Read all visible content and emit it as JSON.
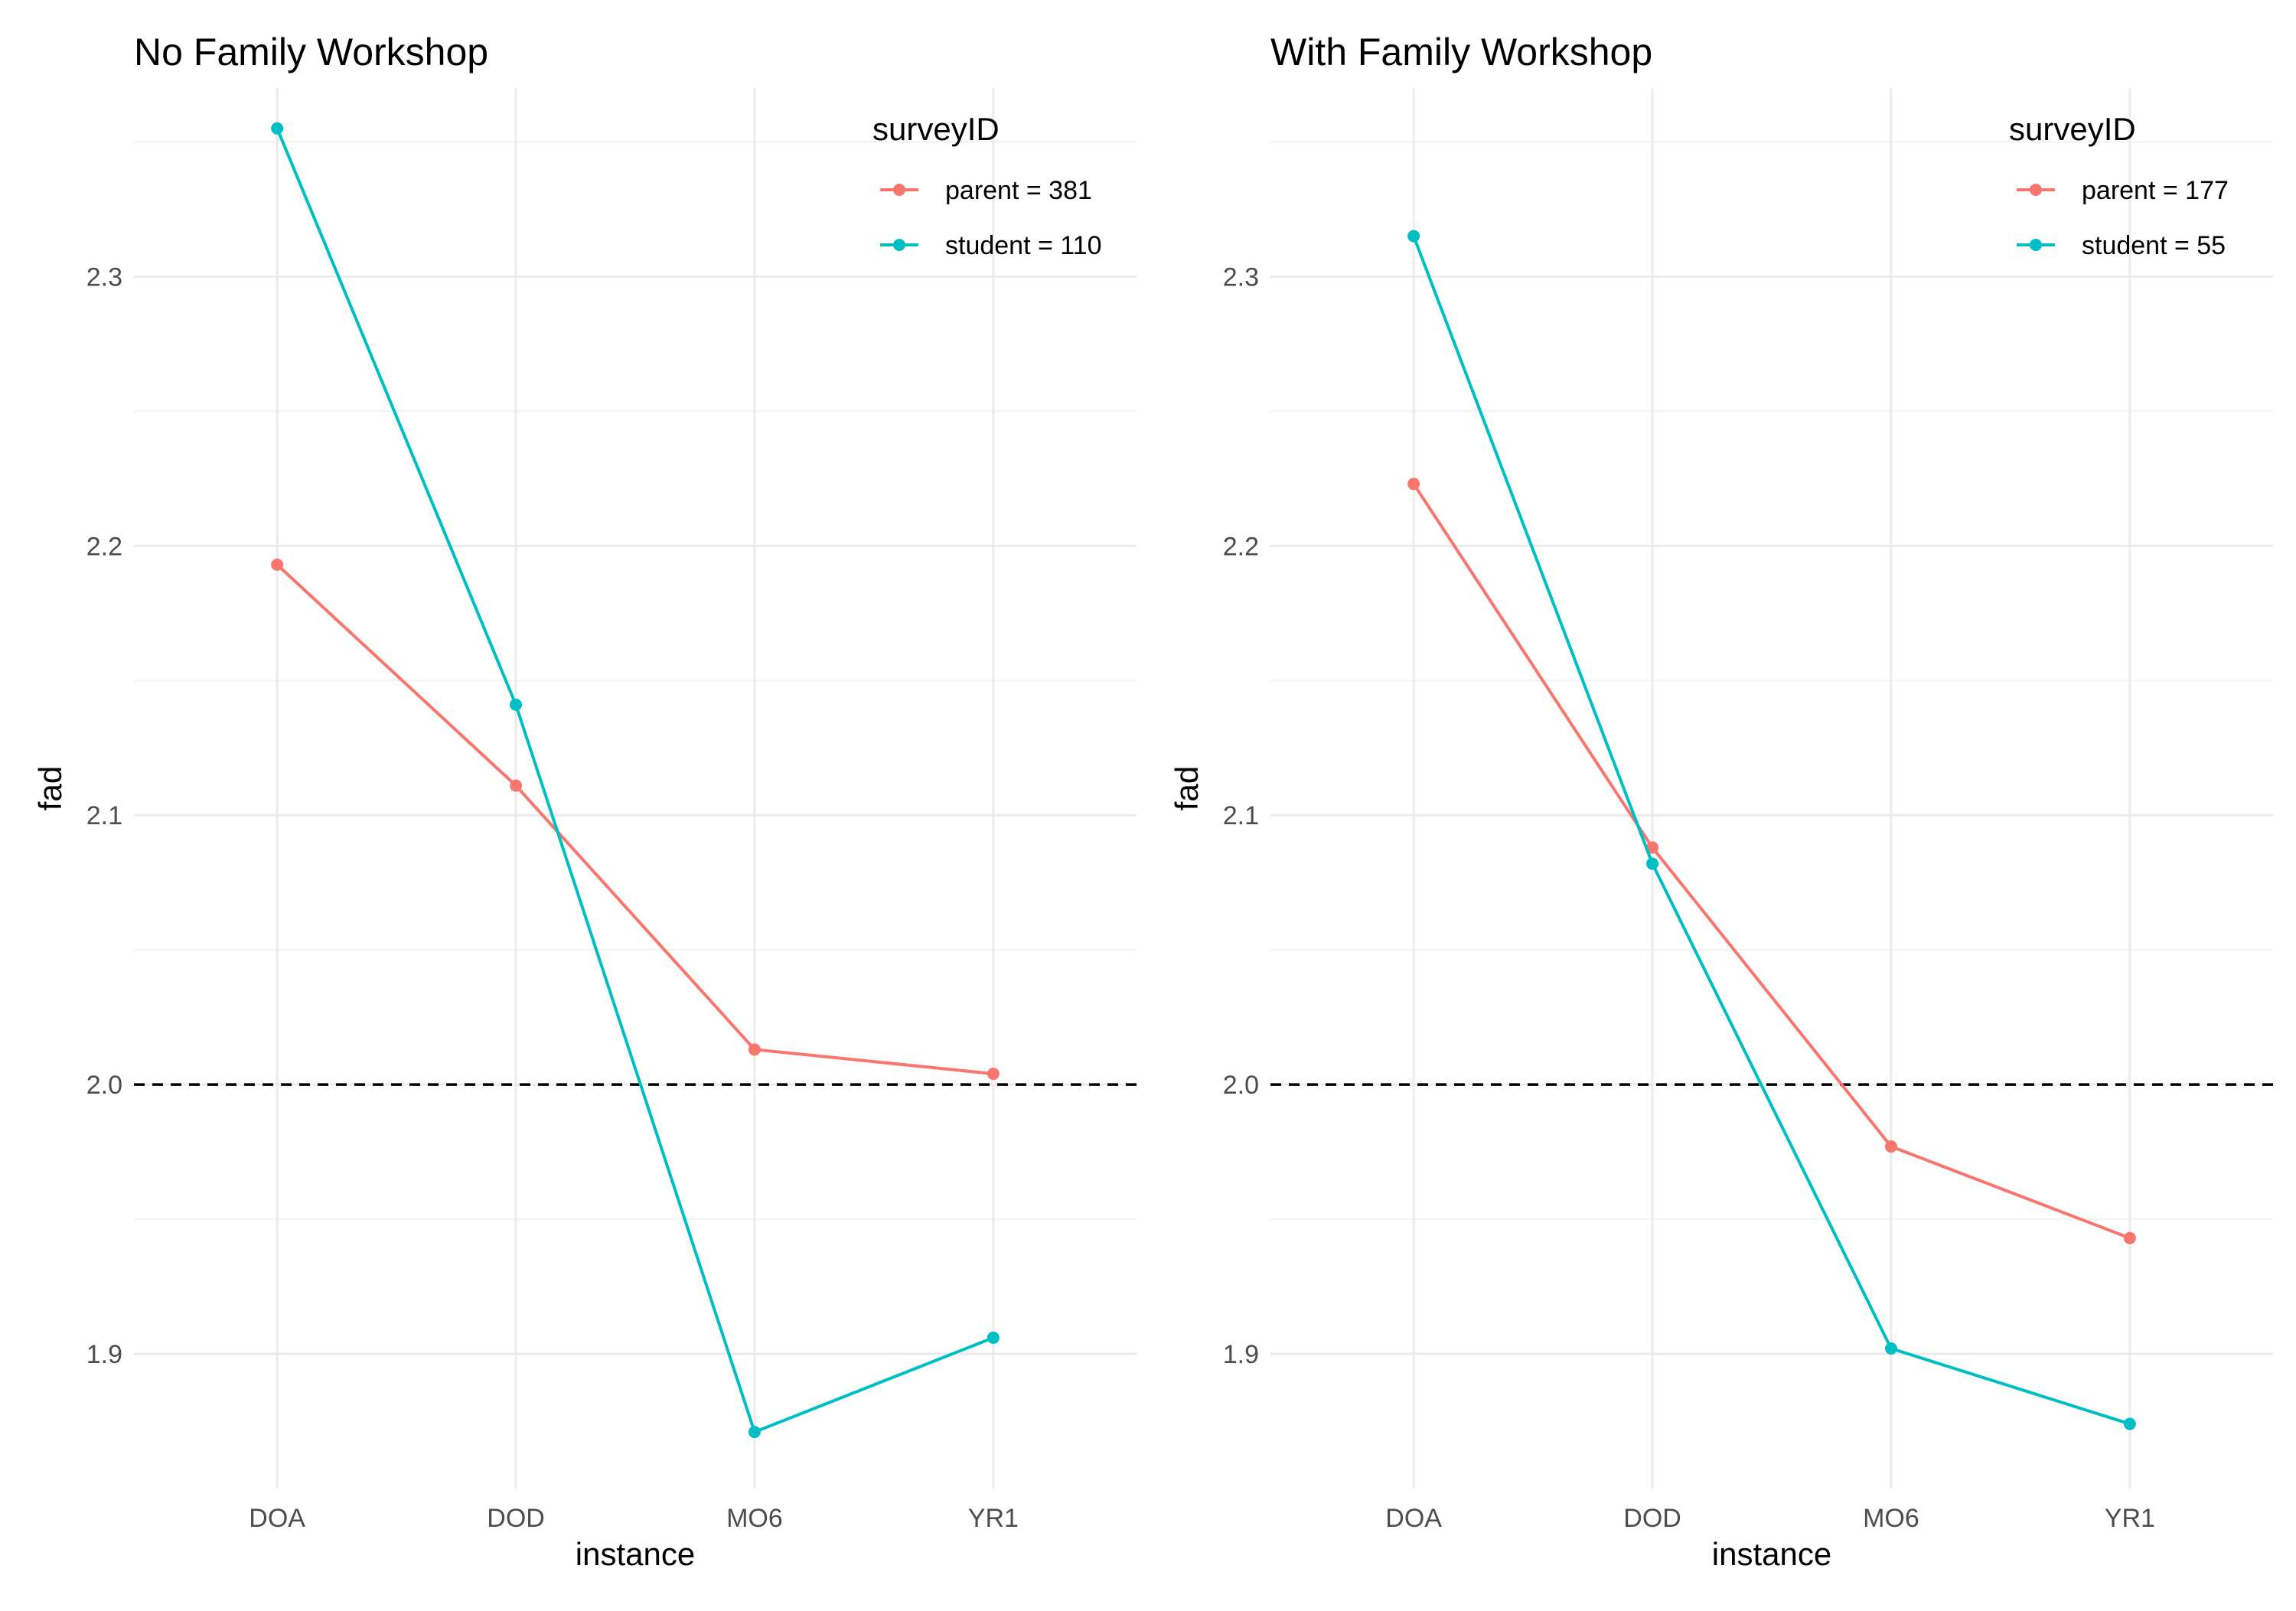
{
  "chart_data": [
    {
      "type": "line",
      "title": "No Family Workshop",
      "xlabel": "instance",
      "ylabel": "fad",
      "categories": [
        "DOA",
        "DOD",
        "MO6",
        "YR1"
      ],
      "ylim": [
        1.85,
        2.37
      ],
      "yticks": [
        1.9,
        2.0,
        2.1,
        2.2,
        2.3
      ],
      "ytick_labels": [
        "1.9",
        "2.0",
        "2.1",
        "2.2",
        "2.3"
      ],
      "reference_line": {
        "y": 2.0,
        "style": "dashed",
        "color": "#000000"
      },
      "grid": true,
      "legend": {
        "title": "surveyID",
        "position": "top-right",
        "entries": [
          "parent = 381",
          "student = 110"
        ]
      },
      "series": [
        {
          "name": "parent = 381",
          "color": "#F8766D",
          "values": [
            2.193,
            2.111,
            2.013,
            2.004
          ]
        },
        {
          "name": "student = 110",
          "color": "#00BFC4",
          "values": [
            2.355,
            2.141,
            1.871,
            1.906
          ]
        }
      ]
    },
    {
      "type": "line",
      "title": "With Family Workshop",
      "xlabel": "instance",
      "ylabel": "fad",
      "categories": [
        "DOA",
        "DOD",
        "MO6",
        "YR1"
      ],
      "ylim": [
        1.85,
        2.37
      ],
      "yticks": [
        1.9,
        2.0,
        2.1,
        2.2,
        2.3
      ],
      "ytick_labels": [
        "1.9",
        "2.0",
        "2.1",
        "2.2",
        "2.3"
      ],
      "reference_line": {
        "y": 2.0,
        "style": "dashed",
        "color": "#000000"
      },
      "grid": true,
      "legend": {
        "title": "surveyID",
        "position": "top-right",
        "entries": [
          "parent = 177",
          "student = 55"
        ]
      },
      "series": [
        {
          "name": "parent = 177",
          "color": "#F8766D",
          "values": [
            2.223,
            2.088,
            1.977,
            1.943
          ]
        },
        {
          "name": "student = 55",
          "color": "#00BFC4",
          "values": [
            2.315,
            2.082,
            1.902,
            1.874
          ]
        }
      ]
    }
  ]
}
